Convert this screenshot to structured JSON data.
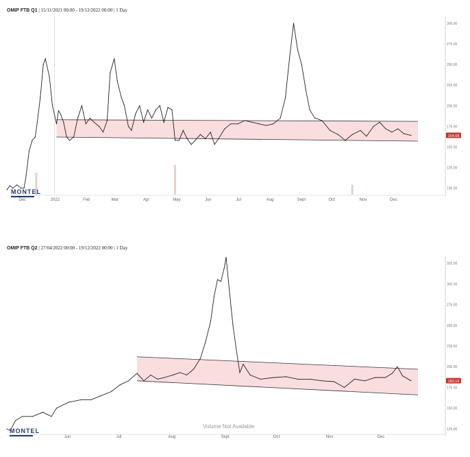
{
  "chart_data": [
    {
      "type": "line",
      "title_bold": "OMIP FTB Q1",
      "title_rest": "| 15/11/2021 00:00 - 19/12/2022 00:00 | 1 Day",
      "x_tick_labels": [
        "Dec",
        "2022",
        "Feb",
        "Mar",
        "Apr",
        "May",
        "Jun",
        "Jul",
        "Aug",
        "Sept",
        "Oct",
        "Nov",
        "Dec"
      ],
      "y_ticks": [
        "100.00",
        "125.00",
        "150.00",
        "175.00",
        "200.00",
        "225.00",
        "250.00",
        "275.00",
        "300.00"
      ],
      "ylim": [
        93,
        305
      ],
      "last_value_label": "164.08",
      "x_start_date": "2021-11-15",
      "x_end_date": "2022-12-19",
      "series": [
        {
          "points": [
            [
              "2021-11-15",
              98
            ],
            [
              "2021-11-18",
              103
            ],
            [
              "2021-11-21",
              100
            ],
            [
              "2021-11-25",
              104
            ],
            [
              "2021-11-29",
              100
            ],
            [
              "2021-12-02",
              100
            ],
            [
              "2021-12-04",
              115
            ],
            [
              "2021-12-07",
              145
            ],
            [
              "2021-12-10",
              158
            ],
            [
              "2021-12-13",
              162
            ],
            [
              "2021-12-15",
              180
            ],
            [
              "2021-12-18",
              210
            ],
            [
              "2021-12-21",
              250
            ],
            [
              "2021-12-23",
              257
            ],
            [
              "2021-12-27",
              235
            ],
            [
              "2021-12-30",
              200
            ],
            [
              "2022-01-03",
              178
            ],
            [
              "2022-01-05",
              194
            ],
            [
              "2022-01-07",
              190
            ],
            [
              "2022-01-10",
              180
            ],
            [
              "2022-01-13",
              162
            ],
            [
              "2022-01-16",
              158
            ],
            [
              "2022-01-20",
              162
            ],
            [
              "2022-01-24",
              185
            ],
            [
              "2022-01-28",
              200
            ],
            [
              "2022-02-01",
              178
            ],
            [
              "2022-02-05",
              185
            ],
            [
              "2022-02-09",
              180
            ],
            [
              "2022-02-14",
              175
            ],
            [
              "2022-02-18",
              168
            ],
            [
              "2022-02-22",
              182
            ],
            [
              "2022-02-25",
              240
            ],
            [
              "2022-03-01",
              257
            ],
            [
              "2022-03-04",
              230
            ],
            [
              "2022-03-08",
              210
            ],
            [
              "2022-03-11",
              200
            ],
            [
              "2022-03-15",
              175
            ],
            [
              "2022-03-18",
              170
            ],
            [
              "2022-03-22",
              190
            ],
            [
              "2022-03-26",
              200
            ],
            [
              "2022-03-30",
              180
            ],
            [
              "2022-04-03",
              195
            ],
            [
              "2022-04-07",
              185
            ],
            [
              "2022-04-11",
              195
            ],
            [
              "2022-04-15",
              200
            ],
            [
              "2022-04-19",
              180
            ],
            [
              "2022-04-23",
              198
            ],
            [
              "2022-04-27",
              195
            ],
            [
              "2022-04-30",
              158
            ],
            [
              "2022-05-04",
              158
            ],
            [
              "2022-05-08",
              170
            ],
            [
              "2022-05-12",
              160
            ],
            [
              "2022-05-16",
              153
            ],
            [
              "2022-05-20",
              158
            ],
            [
              "2022-05-25",
              165
            ],
            [
              "2022-05-30",
              160
            ],
            [
              "2022-06-04",
              168
            ],
            [
              "2022-06-08",
              153
            ],
            [
              "2022-06-12",
              160
            ],
            [
              "2022-06-18",
              172
            ],
            [
              "2022-06-24",
              178
            ],
            [
              "2022-07-01",
              178
            ],
            [
              "2022-07-08",
              182
            ],
            [
              "2022-07-15",
              180
            ],
            [
              "2022-07-22",
              178
            ],
            [
              "2022-07-29",
              176
            ],
            [
              "2022-08-05",
              178
            ],
            [
              "2022-08-12",
              185
            ],
            [
              "2022-08-17",
              210
            ],
            [
              "2022-08-21",
              258
            ],
            [
              "2022-08-25",
              300
            ],
            [
              "2022-08-29",
              268
            ],
            [
              "2022-09-02",
              250
            ],
            [
              "2022-09-06",
              220
            ],
            [
              "2022-09-10",
              195
            ],
            [
              "2022-09-15",
              185
            ],
            [
              "2022-09-22",
              182
            ],
            [
              "2022-09-30",
              170
            ],
            [
              "2022-10-08",
              165
            ],
            [
              "2022-10-15",
              158
            ],
            [
              "2022-10-22",
              165
            ],
            [
              "2022-10-30",
              170
            ],
            [
              "2022-11-05",
              163
            ],
            [
              "2022-11-12",
              175
            ],
            [
              "2022-11-18",
              180
            ],
            [
              "2022-11-24",
              172
            ],
            [
              "2022-11-30",
              168
            ],
            [
              "2022-12-06",
              172
            ],
            [
              "2022-12-12",
              166
            ],
            [
              "2022-12-19",
              164
            ]
          ]
        }
      ],
      "channel": {
        "start_date": "2022-01-03",
        "end_date": "2022-12-19",
        "upper": [
          183,
          181
        ],
        "lower": [
          162,
          157
        ]
      },
      "volume_bars": [
        {
          "date": "2021-12-14",
          "height": 0.2
        },
        {
          "date": "2022-04-30",
          "height": 0.27
        },
        {
          "date": "2022-10-22",
          "height": 0.09
        }
      ],
      "logo": "MONTEL"
    },
    {
      "type": "line",
      "title_bold": "OMIP FTB Q2",
      "title_rest": "| 27/04/2022 00:00 - 19/12/2022 00:00 | 1 Day",
      "x_tick_labels": [
        "Jun",
        "Jul",
        "Aug",
        "Sept",
        "Oct",
        "Nov",
        "Dec"
      ],
      "y_ticks": [
        "125.00",
        "150.00",
        "175.00",
        "200.00",
        "225.00",
        "250.00",
        "275.00",
        "300.00",
        "325.00"
      ],
      "ylim": [
        120,
        330
      ],
      "last_value_label": "183.19",
      "x_start_date": "2022-04-27",
      "x_end_date": "2022-12-19",
      "series": [
        {
          "points": [
            [
              "2022-04-27",
              125
            ],
            [
              "2022-04-29",
              123
            ],
            [
              "2022-05-02",
              135
            ],
            [
              "2022-05-06",
              140
            ],
            [
              "2022-05-12",
              140
            ],
            [
              "2022-05-18",
              145
            ],
            [
              "2022-05-23",
              140
            ],
            [
              "2022-05-26",
              150
            ],
            [
              "2022-06-02",
              157
            ],
            [
              "2022-06-09",
              160
            ],
            [
              "2022-06-15",
              160
            ],
            [
              "2022-06-21",
              165
            ],
            [
              "2022-06-27",
              170
            ],
            [
              "2022-07-02",
              178
            ],
            [
              "2022-07-07",
              183
            ],
            [
              "2022-07-12",
              192
            ],
            [
              "2022-07-16",
              183
            ],
            [
              "2022-07-20",
              190
            ],
            [
              "2022-07-24",
              185
            ],
            [
              "2022-07-28",
              187
            ],
            [
              "2022-08-02",
              190
            ],
            [
              "2022-08-06",
              193
            ],
            [
              "2022-08-10",
              190
            ],
            [
              "2022-08-14",
              197
            ],
            [
              "2022-08-18",
              210
            ],
            [
              "2022-08-21",
              230
            ],
            [
              "2022-08-24",
              255
            ],
            [
              "2022-08-26",
              285
            ],
            [
              "2022-08-28",
              305
            ],
            [
              "2022-08-30",
              303
            ],
            [
              "2022-09-01",
              320
            ],
            [
              "2022-09-02",
              332
            ],
            [
              "2022-09-04",
              290
            ],
            [
              "2022-09-06",
              250
            ],
            [
              "2022-09-08",
              220
            ],
            [
              "2022-09-10",
              193
            ],
            [
              "2022-09-12",
              203
            ],
            [
              "2022-09-16",
              190
            ],
            [
              "2022-09-22",
              185
            ],
            [
              "2022-09-30",
              187
            ],
            [
              "2022-10-07",
              188
            ],
            [
              "2022-10-14",
              185
            ],
            [
              "2022-10-21",
              185
            ],
            [
              "2022-10-28",
              183
            ],
            [
              "2022-11-04",
              182
            ],
            [
              "2022-11-10",
              175
            ],
            [
              "2022-11-16",
              185
            ],
            [
              "2022-11-22",
              183
            ],
            [
              "2022-11-28",
              187
            ],
            [
              "2022-12-04",
              187
            ],
            [
              "2022-12-08",
              192
            ],
            [
              "2022-12-11",
              200
            ],
            [
              "2022-12-14",
              189
            ],
            [
              "2022-12-19",
              183
            ]
          ]
        }
      ],
      "channel": {
        "start_date": "2022-07-12",
        "end_date": "2022-12-19",
        "upper": [
          212,
          197
        ],
        "lower": [
          183,
          166
        ]
      },
      "volume_note": "Volume Not Available",
      "logo": "MONTEL"
    }
  ]
}
